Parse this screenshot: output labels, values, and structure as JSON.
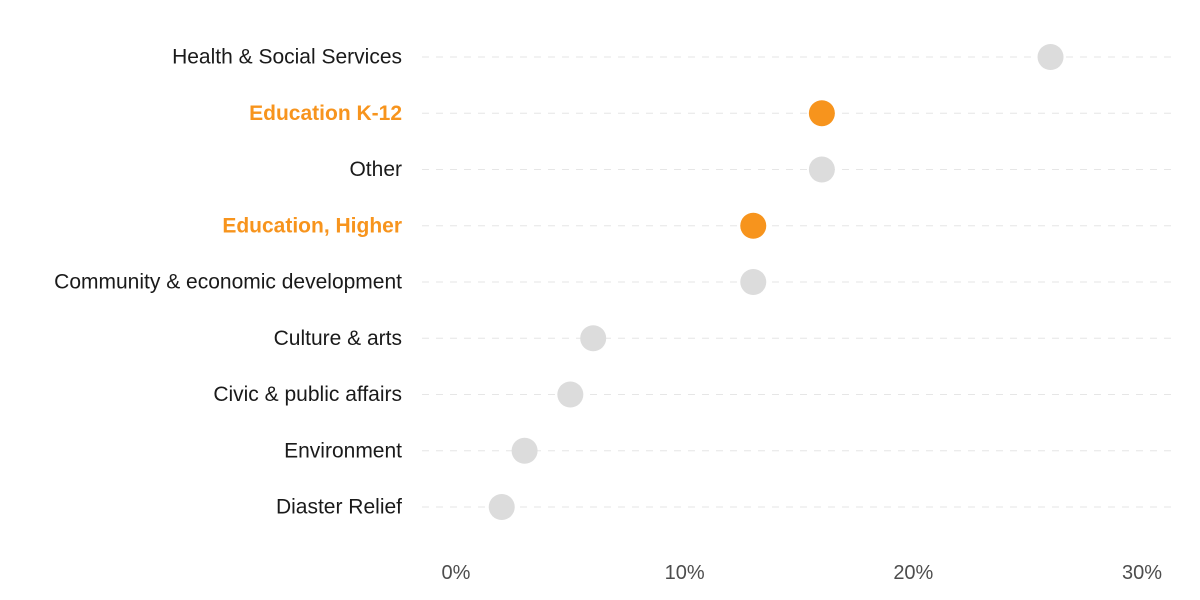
{
  "chart_data": {
    "type": "dot",
    "title": "",
    "xlabel": "",
    "ylabel": "",
    "xlim": [
      0,
      30
    ],
    "x_ticks": [
      0,
      10,
      20,
      30
    ],
    "x_tick_labels": [
      "0%",
      "10%",
      "20%",
      "30%"
    ],
    "grid": true,
    "categories": [
      "Health & Social Services",
      "Education K-12",
      "Other",
      "Education, Higher",
      "Community & economic development",
      "Culture & arts",
      "Civic & public affairs",
      "Environment",
      "Diaster Relief"
    ],
    "values": [
      26,
      16,
      16,
      13,
      13,
      6,
      5,
      3,
      2
    ],
    "highlighted": [
      false,
      true,
      false,
      true,
      false,
      false,
      false,
      false,
      false
    ],
    "colors": {
      "default": "#dcdcdc",
      "highlight": "#f7941d"
    }
  }
}
